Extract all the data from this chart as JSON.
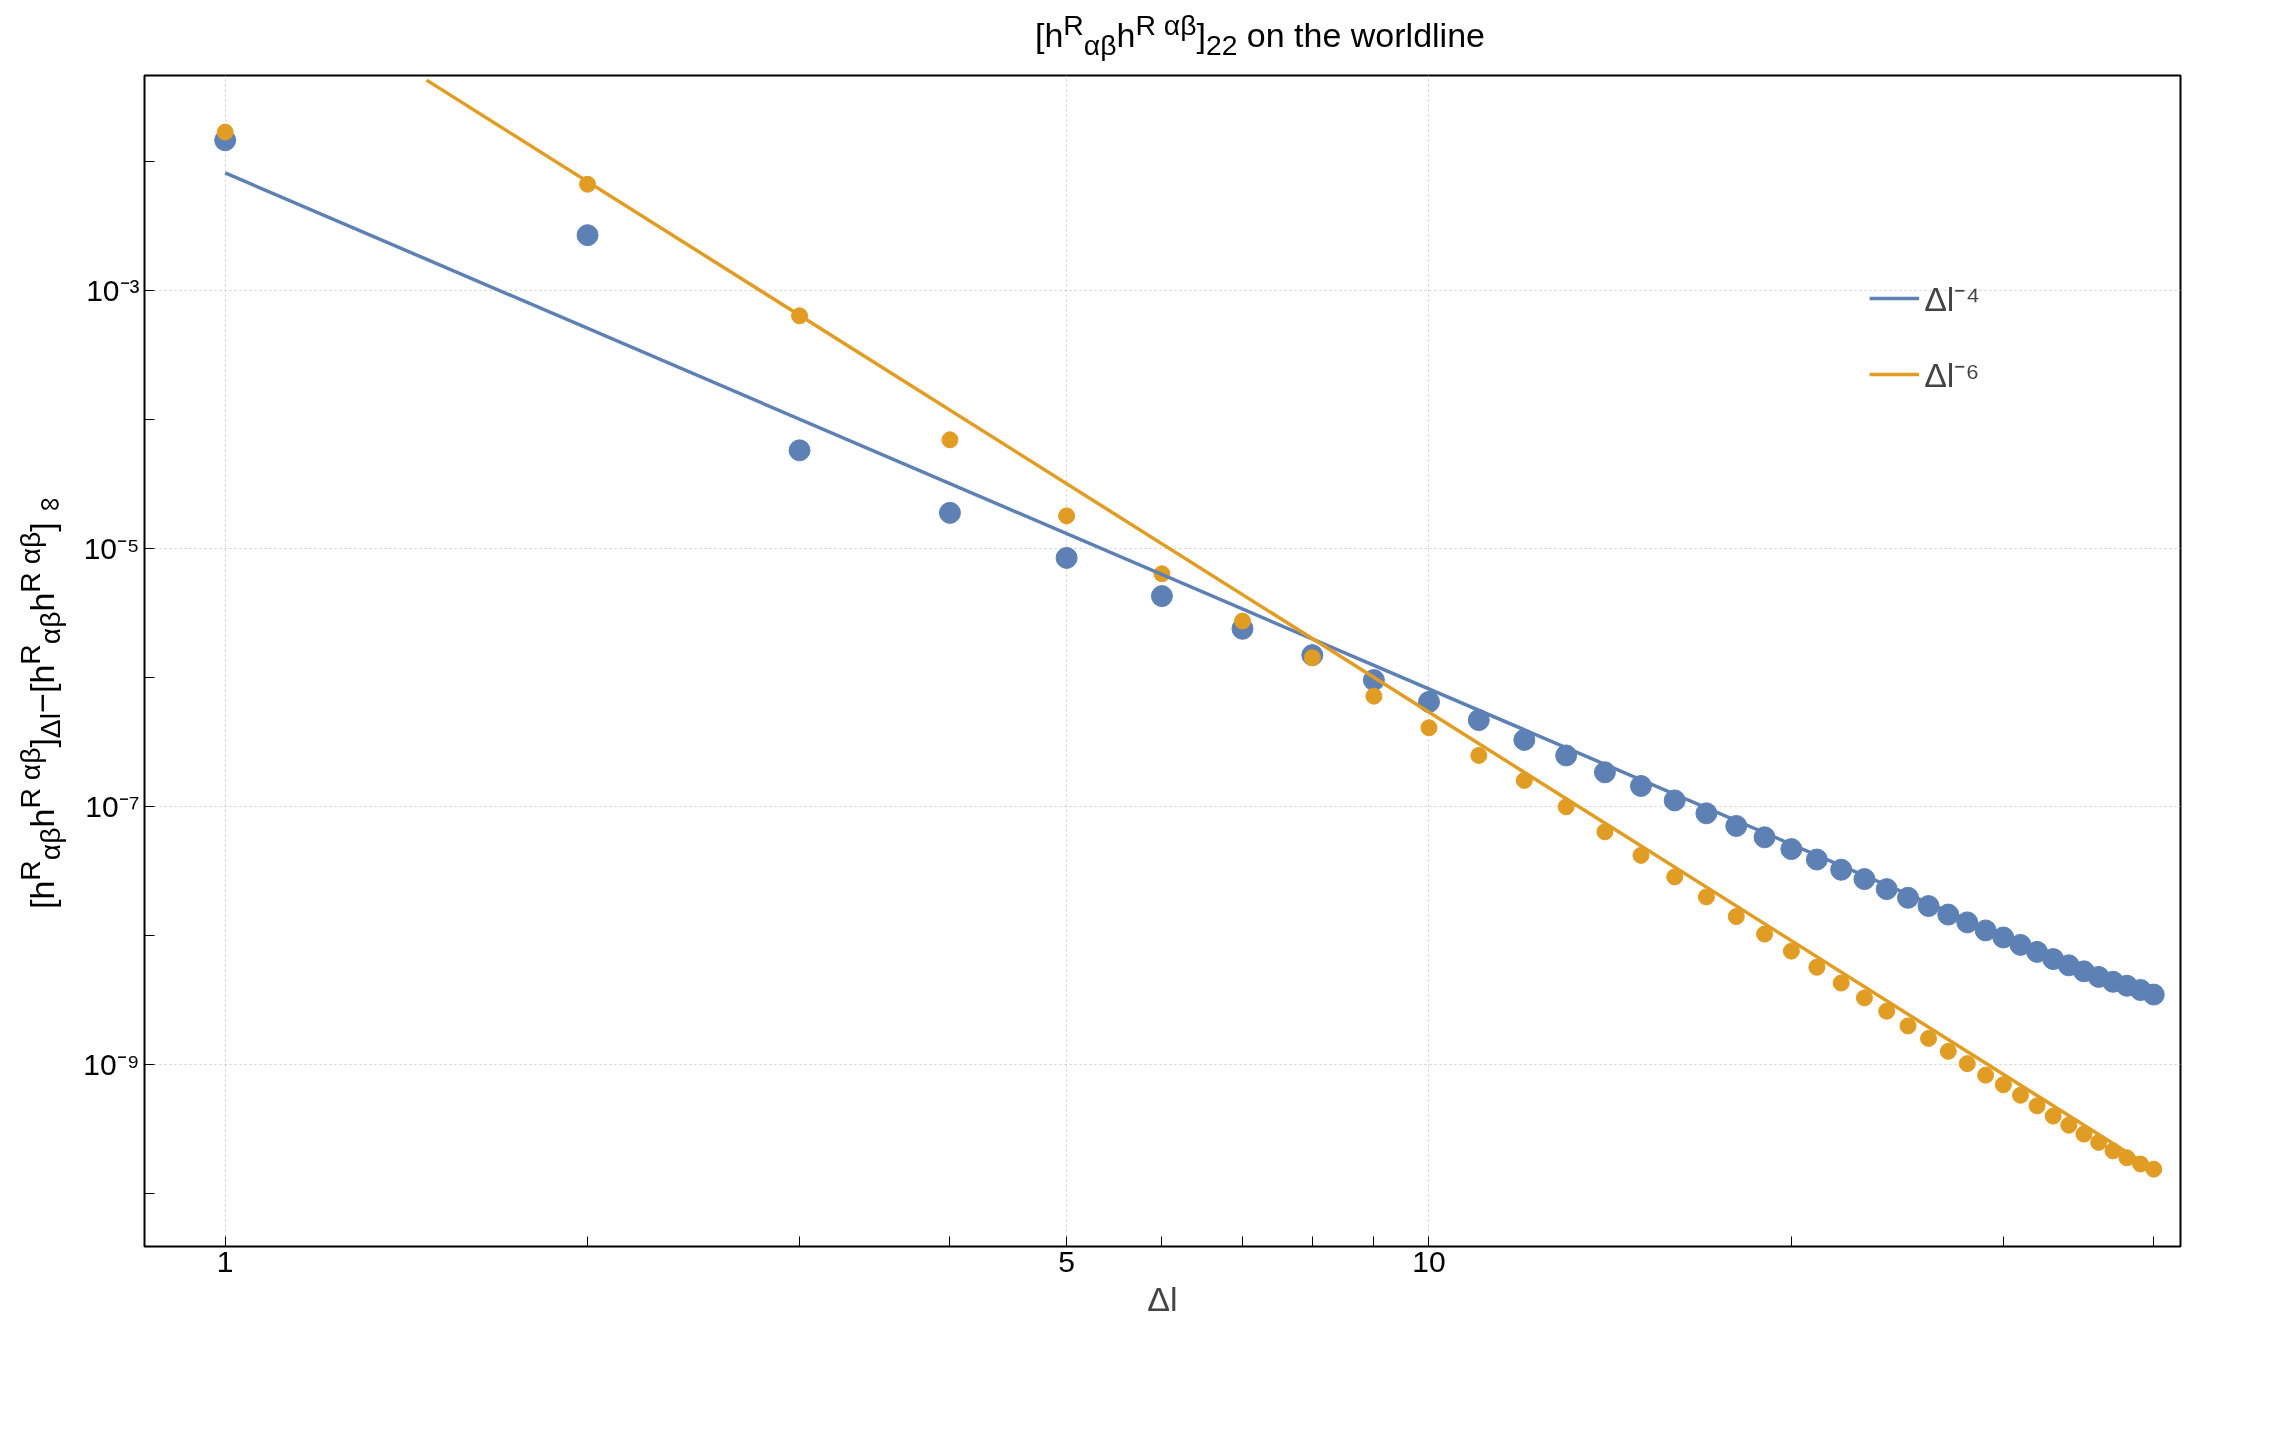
{
  "chart_data": {
    "type": "scatter",
    "title": "[h$^{R}$$_{αβ}$h$^{R αβ}$]$_{22}$ on the worldline",
    "xlabel": "Δl",
    "ylabel": "[h$^{R}$$_{αβ}$h$^{R αβ}$]$_{Δl}$−[h$^{R}$$_{αβ}$h$^{R αβ}$]$_{∞}$",
    "x": [
      1,
      2,
      3,
      4,
      5,
      6,
      7,
      8,
      9,
      10,
      11,
      12,
      13,
      14,
      15,
      16,
      17,
      18,
      19,
      20,
      21,
      22,
      23,
      24,
      25,
      26,
      27,
      28,
      29,
      30,
      31,
      32,
      33,
      34,
      35,
      36,
      37,
      38,
      39,
      40
    ],
    "series": [
      {
        "color": "#5e81b5",
        "values": [
          0.0147,
          0.0027,
          5.8e-05,
          1.9e-05,
          8.5e-06,
          4.3e-06,
          2.4e-06,
          1.5e-06,
          9.6e-07,
          6.5e-07,
          4.7e-07,
          3.3e-07,
          2.5e-07,
          1.85e-07,
          1.45e-07,
          1.12e-07,
          8.9e-08,
          7.1e-08,
          5.8e-08,
          4.7e-08,
          3.9e-08,
          3.25e-08,
          2.75e-08,
          2.3e-08,
          1.97e-08,
          1.7e-08,
          1.46e-08,
          1.27e-08,
          1.1e-08,
          9.7e-09,
          8.5e-09,
          7.5e-09,
          6.6e-09,
          5.9e-09,
          5.3e-09,
          4.8e-09,
          4.4e-09,
          4.1e-09,
          3.8e-09,
          3.5e-09
        ]
      },
      {
        "color": "#e19c24",
        "values": [
          0.017,
          0.0067,
          0.00064,
          7e-05,
          1.8e-05,
          6.4e-06,
          2.75e-06,
          1.43e-06,
          7.2e-07,
          4.1e-07,
          2.5e-07,
          1.6e-07,
          1e-07,
          6.4e-08,
          4.2e-08,
          2.86e-08,
          2e-08,
          1.41e-08,
          1.03e-08,
          7.6e-09,
          5.7e-09,
          4.3e-09,
          3.3e-09,
          2.6e-09,
          2e-09,
          1.6e-09,
          1.27e-09,
          1.02e-09,
          8.3e-10,
          7e-10,
          5.8e-10,
          4.8e-10,
          4e-10,
          3.4e-10,
          2.9e-10,
          2.5e-10,
          2.15e-10,
          1.9e-10,
          1.7e-10,
          1.55e-10
        ]
      },
      {
        "type": "line",
        "marker": "none",
        "name": "Δl⁻⁴",
        "color": "#5e81b5",
        "x": [
          1,
          40
        ],
        "values": [
          0.0082,
          3.2e-09
        ]
      },
      {
        "type": "line",
        "marker": "none",
        "name": "Δl⁻⁶",
        "color": "#e19c24",
        "x": [
          1.47,
          40
        ],
        "values": [
          0.043,
          1.55e-10
        ]
      }
    ],
    "log": "xy",
    "xlim": [
      0.857,
      42.1
    ],
    "ylim": [
      3.9e-11,
      0.0467
    ],
    "xticks": [
      1,
      {
        "value": 2,
        "label": null
      },
      {
        "value": 3,
        "label": null
      },
      {
        "value": 4,
        "label": null
      },
      5,
      {
        "value": 6,
        "label": null
      },
      {
        "value": 7,
        "label": null
      },
      {
        "value": 8,
        "label": null
      },
      {
        "value": 9,
        "label": null
      },
      10,
      {
        "value": 20,
        "label": null
      },
      {
        "value": 30,
        "label": null
      },
      {
        "value": 40,
        "label": null
      }
    ],
    "yticks": [
      {
        "value": 0.01,
        "label": null
      },
      {
        "value": 0.001,
        "label": "10⁻³"
      },
      {
        "value": 0.0001,
        "label": null
      },
      {
        "value": 1e-05,
        "label": "10⁻⁵"
      },
      {
        "value": 1e-06,
        "label": null
      },
      {
        "value": 1e-07,
        "label": "10⁻⁷"
      },
      {
        "value": 1e-08,
        "label": null
      },
      {
        "value": 1e-09,
        "label": "10⁻⁹"
      },
      {
        "value": 1e-10,
        "label": null
      }
    ],
    "grid": true,
    "legend": "top right",
    "marker": "circle",
    "line_style": "solid"
  }
}
